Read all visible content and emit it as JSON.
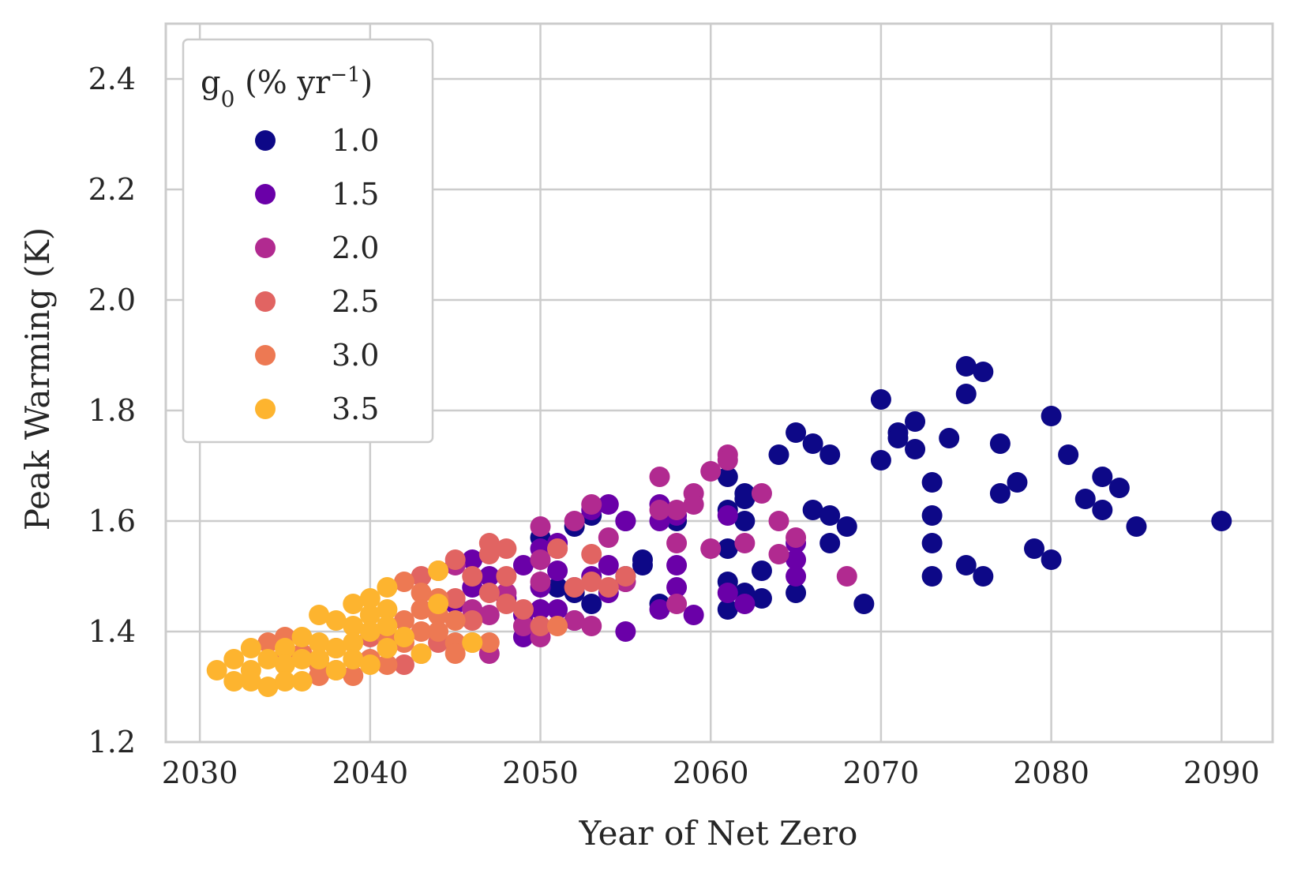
{
  "chart_data": {
    "type": "scatter",
    "title": "",
    "xlabel": "Year of Net Zero",
    "ylabel": "Peak Warming (K)",
    "xlim": [
      2028,
      2093
    ],
    "ylim": [
      1.2,
      2.5
    ],
    "xticks": [
      "2030",
      "2040",
      "2050",
      "2060",
      "2070",
      "2080",
      "2090"
    ],
    "yticks": [
      "1.2",
      "1.4",
      "1.6",
      "1.8",
      "2.0",
      "2.2",
      "2.4"
    ],
    "grid": true,
    "legend": {
      "title_main": "g",
      "title_sub": "0",
      "title_rest": " (% yr",
      "title_sup": "−1",
      "title_end": ")",
      "placement": "top-left"
    },
    "series": [
      {
        "name": "1.0",
        "color": "#0d0887",
        "points": [
          [
            2050,
            1.57
          ],
          [
            2051,
            1.48
          ],
          [
            2052,
            1.59
          ],
          [
            2052,
            1.47
          ],
          [
            2053,
            1.45
          ],
          [
            2053,
            1.61
          ],
          [
            2055,
            1.6
          ],
          [
            2055,
            1.5
          ],
          [
            2056,
            1.53
          ],
          [
            2056,
            1.52
          ],
          [
            2057,
            1.45
          ],
          [
            2058,
            1.6
          ],
          [
            2061,
            1.68
          ],
          [
            2061,
            1.62
          ],
          [
            2061,
            1.55
          ],
          [
            2061,
            1.49
          ],
          [
            2061,
            1.44
          ],
          [
            2062,
            1.65
          ],
          [
            2062,
            1.64
          ],
          [
            2062,
            1.6
          ],
          [
            2062,
            1.47
          ],
          [
            2063,
            1.51
          ],
          [
            2063,
            1.46
          ],
          [
            2064,
            1.72
          ],
          [
            2065,
            1.76
          ],
          [
            2065,
            1.47
          ],
          [
            2066,
            1.74
          ],
          [
            2066,
            1.62
          ],
          [
            2067,
            1.72
          ],
          [
            2067,
            1.61
          ],
          [
            2067,
            1.56
          ],
          [
            2068,
            1.59
          ],
          [
            2069,
            1.45
          ],
          [
            2070,
            1.82
          ],
          [
            2070,
            1.71
          ],
          [
            2071,
            1.76
          ],
          [
            2071,
            1.75
          ],
          [
            2072,
            1.78
          ],
          [
            2072,
            1.73
          ],
          [
            2073,
            1.67
          ],
          [
            2073,
            1.61
          ],
          [
            2073,
            1.56
          ],
          [
            2073,
            1.5
          ],
          [
            2074,
            1.75
          ],
          [
            2075,
            1.88
          ],
          [
            2075,
            1.83
          ],
          [
            2075,
            1.52
          ],
          [
            2076,
            1.87
          ],
          [
            2076,
            1.5
          ],
          [
            2077,
            1.74
          ],
          [
            2077,
            1.65
          ],
          [
            2078,
            1.67
          ],
          [
            2079,
            1.55
          ],
          [
            2080,
            1.79
          ],
          [
            2080,
            1.53
          ],
          [
            2081,
            1.72
          ],
          [
            2082,
            1.64
          ],
          [
            2083,
            1.68
          ],
          [
            2083,
            1.62
          ],
          [
            2084,
            1.66
          ],
          [
            2085,
            1.59
          ],
          [
            2090,
            1.6
          ]
        ]
      },
      {
        "name": "1.5",
        "color": "#6a00a8",
        "points": [
          [
            2045,
            1.45
          ],
          [
            2046,
            1.48
          ],
          [
            2046,
            1.53
          ],
          [
            2047,
            1.5
          ],
          [
            2048,
            1.46
          ],
          [
            2049,
            1.52
          ],
          [
            2049,
            1.43
          ],
          [
            2049,
            1.39
          ],
          [
            2050,
            1.55
          ],
          [
            2050,
            1.48
          ],
          [
            2050,
            1.44
          ],
          [
            2051,
            1.56
          ],
          [
            2051,
            1.51
          ],
          [
            2051,
            1.44
          ],
          [
            2052,
            1.48
          ],
          [
            2052,
            1.42
          ],
          [
            2053,
            1.62
          ],
          [
            2053,
            1.5
          ],
          [
            2054,
            1.63
          ],
          [
            2054,
            1.52
          ],
          [
            2054,
            1.47
          ],
          [
            2055,
            1.6
          ],
          [
            2055,
            1.49
          ],
          [
            2055,
            1.4
          ],
          [
            2057,
            1.63
          ],
          [
            2057,
            1.6
          ],
          [
            2057,
            1.44
          ],
          [
            2058,
            1.61
          ],
          [
            2058,
            1.52
          ],
          [
            2058,
            1.48
          ],
          [
            2059,
            1.43
          ],
          [
            2061,
            1.61
          ],
          [
            2061,
            1.47
          ],
          [
            2062,
            1.45
          ],
          [
            2065,
            1.56
          ],
          [
            2065,
            1.53
          ],
          [
            2065,
            1.5
          ]
        ]
      },
      {
        "name": "2.0",
        "color": "#b12a90",
        "points": [
          [
            2045,
            1.52
          ],
          [
            2046,
            1.44
          ],
          [
            2047,
            1.43
          ],
          [
            2047,
            1.36
          ],
          [
            2048,
            1.47
          ],
          [
            2049,
            1.41
          ],
          [
            2050,
            1.59
          ],
          [
            2050,
            1.53
          ],
          [
            2050,
            1.49
          ],
          [
            2050,
            1.39
          ],
          [
            2051,
            1.55
          ],
          [
            2052,
            1.6
          ],
          [
            2052,
            1.42
          ],
          [
            2053,
            1.63
          ],
          [
            2053,
            1.41
          ],
          [
            2054,
            1.57
          ],
          [
            2055,
            1.49
          ],
          [
            2057,
            1.68
          ],
          [
            2057,
            1.62
          ],
          [
            2058,
            1.62
          ],
          [
            2058,
            1.56
          ],
          [
            2058,
            1.45
          ],
          [
            2059,
            1.65
          ],
          [
            2059,
            1.63
          ],
          [
            2060,
            1.69
          ],
          [
            2060,
            1.55
          ],
          [
            2061,
            1.72
          ],
          [
            2061,
            1.71
          ],
          [
            2062,
            1.56
          ],
          [
            2063,
            1.65
          ],
          [
            2064,
            1.6
          ],
          [
            2064,
            1.54
          ],
          [
            2065,
            1.57
          ],
          [
            2068,
            1.5
          ]
        ]
      },
      {
        "name": "2.5",
        "color": "#e16462",
        "points": [
          [
            2040,
            1.39
          ],
          [
            2041,
            1.41
          ],
          [
            2042,
            1.34
          ],
          [
            2043,
            1.5
          ],
          [
            2043,
            1.44
          ],
          [
            2044,
            1.38
          ],
          [
            2045,
            1.53
          ],
          [
            2045,
            1.46
          ],
          [
            2046,
            1.5
          ],
          [
            2046,
            1.42
          ],
          [
            2047,
            1.56
          ],
          [
            2047,
            1.54
          ],
          [
            2047,
            1.47
          ],
          [
            2048,
            1.55
          ],
          [
            2048,
            1.5
          ],
          [
            2048,
            1.45
          ],
          [
            2049,
            1.44
          ],
          [
            2050,
            1.41
          ],
          [
            2051,
            1.55
          ],
          [
            2052,
            1.48
          ],
          [
            2053,
            1.54
          ],
          [
            2053,
            1.49
          ],
          [
            2054,
            1.48
          ],
          [
            2055,
            1.5
          ]
        ]
      },
      {
        "name": "3.0",
        "color": "#fca636",
        "fill": "#ed7953",
        "points": [
          [
            2034,
            1.38
          ],
          [
            2035,
            1.39
          ],
          [
            2035,
            1.36
          ],
          [
            2036,
            1.36
          ],
          [
            2037,
            1.34
          ],
          [
            2037,
            1.32
          ],
          [
            2038,
            1.37
          ],
          [
            2038,
            1.33
          ],
          [
            2039,
            1.32
          ],
          [
            2040,
            1.35
          ],
          [
            2041,
            1.34
          ],
          [
            2041,
            1.39
          ],
          [
            2042,
            1.49
          ],
          [
            2042,
            1.42
          ],
          [
            2042,
            1.38
          ],
          [
            2043,
            1.47
          ],
          [
            2043,
            1.44
          ],
          [
            2043,
            1.4
          ],
          [
            2043,
            1.36
          ],
          [
            2044,
            1.51
          ],
          [
            2044,
            1.46
          ],
          [
            2044,
            1.43
          ],
          [
            2044,
            1.4
          ],
          [
            2045,
            1.42
          ],
          [
            2045,
            1.38
          ],
          [
            2045,
            1.36
          ],
          [
            2046,
            1.38
          ],
          [
            2047,
            1.38
          ],
          [
            2051,
            1.41
          ]
        ]
      },
      {
        "name": "3.5",
        "color": "#fdb42f",
        "points": [
          [
            2031,
            1.33
          ],
          [
            2032,
            1.35
          ],
          [
            2032,
            1.31
          ],
          [
            2033,
            1.37
          ],
          [
            2033,
            1.33
          ],
          [
            2033,
            1.31
          ],
          [
            2034,
            1.35
          ],
          [
            2034,
            1.3
          ],
          [
            2035,
            1.37
          ],
          [
            2035,
            1.34
          ],
          [
            2035,
            1.31
          ],
          [
            2036,
            1.39
          ],
          [
            2036,
            1.35
          ],
          [
            2036,
            1.31
          ],
          [
            2037,
            1.43
          ],
          [
            2037,
            1.38
          ],
          [
            2037,
            1.35
          ],
          [
            2038,
            1.42
          ],
          [
            2038,
            1.37
          ],
          [
            2038,
            1.33
          ],
          [
            2039,
            1.45
          ],
          [
            2039,
            1.41
          ],
          [
            2039,
            1.38
          ],
          [
            2039,
            1.35
          ],
          [
            2040,
            1.46
          ],
          [
            2040,
            1.43
          ],
          [
            2040,
            1.4
          ],
          [
            2040,
            1.34
          ],
          [
            2041,
            1.48
          ],
          [
            2041,
            1.44
          ],
          [
            2041,
            1.41
          ],
          [
            2041,
            1.37
          ],
          [
            2042,
            1.39
          ],
          [
            2043,
            1.36
          ],
          [
            2044,
            1.51
          ],
          [
            2044,
            1.45
          ],
          [
            2046,
            1.38
          ]
        ]
      }
    ]
  }
}
